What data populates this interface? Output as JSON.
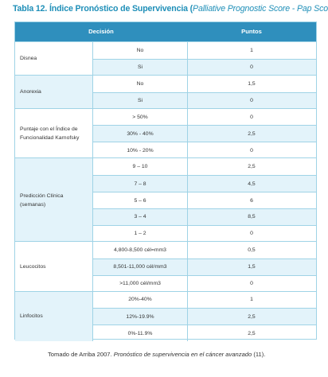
{
  "title": {
    "main": "Tabla 12. Índice Pronóstico de Supervivencia (",
    "italic": "Palliative Prognostic Score - Pap Score",
    "close": ")"
  },
  "header": {
    "decision": "Decisión",
    "puntos": "Puntos"
  },
  "groups": [
    {
      "label": "Disnea",
      "rows": [
        {
          "option": "No",
          "points": "1"
        },
        {
          "option": "Si",
          "points": "0"
        }
      ]
    },
    {
      "label": "Anorexia",
      "rows": [
        {
          "option": "No",
          "points": "1,5"
        },
        {
          "option": "Si",
          "points": "0"
        }
      ]
    },
    {
      "label": "Puntaje con el Índice de\nFuncionalidad Karnofsky",
      "rows": [
        {
          "option": "> 50%",
          "points": "0"
        },
        {
          "option": "30% - 40%",
          "points": "2,5"
        },
        {
          "option": "10% - 20%",
          "points": "0"
        }
      ]
    },
    {
      "label": "Predicción Clínica\n(semanas)",
      "rows": [
        {
          "option": "9 – 10",
          "points": "2,5"
        },
        {
          "option": "7 – 8",
          "points": "4,5"
        },
        {
          "option": "5 – 6",
          "points": "6"
        },
        {
          "option": "3 – 4",
          "points": "8,5"
        },
        {
          "option": "1 – 2",
          "points": "0"
        }
      ]
    },
    {
      "label": "Leucocitos",
      "rows": [
        {
          "option": "4,800-8,500 cél=mm3",
          "points": "0,5"
        },
        {
          "option": "8,501-11,000 cél/mm3",
          "points": "1,5"
        },
        {
          "option": ">11,000 cél/mm3",
          "points": "0"
        }
      ]
    },
    {
      "label": "Linfocitos",
      "rows": [
        {
          "option": "20%-40%",
          "points": "1"
        },
        {
          "option": "12%-19.9%",
          "points": "2,5"
        },
        {
          "option": "0%-11.9%",
          "points": "2,5"
        }
      ]
    }
  ],
  "caption": {
    "text": "Tomado de Arriba 2007. ",
    "italic": "Pronóstico de supervivencia en el cáncer avanzado",
    "end": " (11)."
  }
}
